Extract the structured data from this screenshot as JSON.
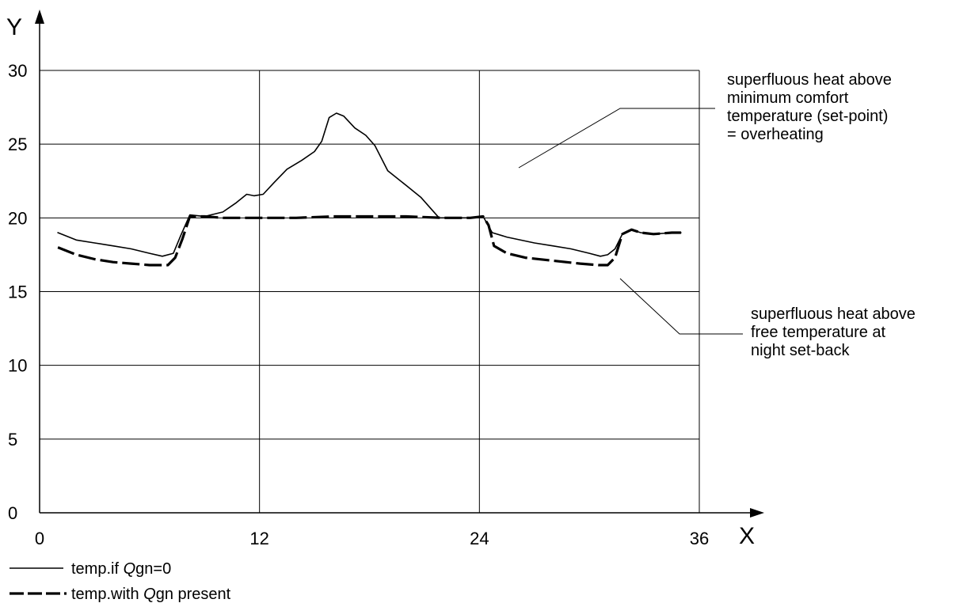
{
  "chart_data": {
    "type": "line",
    "xlabel": "X",
    "ylabel": "Y",
    "xlim": [
      0,
      36
    ],
    "ylim": [
      0,
      30
    ],
    "x_ticks": [
      "0",
      "12",
      "24",
      "36"
    ],
    "y_ticks": [
      "0",
      "5",
      "10",
      "15",
      "20",
      "25",
      "30"
    ],
    "grid": true,
    "series": [
      {
        "name": "temp.if Qgn=0",
        "style": "solid",
        "x": [
          1,
          2,
          3,
          4,
          5,
          6,
          6.7,
          7.3,
          7.7,
          8.2,
          9,
          10,
          10.7,
          11.3,
          11.7,
          12.2,
          12.8,
          13.5,
          14.3,
          15,
          15.4,
          15.8,
          16.2,
          16.6,
          17.2,
          17.8,
          18.3,
          19,
          20,
          20.8,
          21.3,
          21.8,
          22.5,
          23.5,
          24.2,
          24.7,
          25.5,
          27,
          28,
          29,
          30,
          30.6,
          31,
          31.4,
          31.8,
          32.3,
          32.8,
          33.5,
          34.5,
          35
        ],
        "values": [
          19.0,
          18.5,
          18.3,
          18.1,
          17.9,
          17.6,
          17.4,
          17.6,
          18.8,
          20.2,
          20.1,
          20.4,
          21.0,
          21.6,
          21.5,
          21.6,
          22.4,
          23.3,
          23.9,
          24.5,
          25.2,
          26.8,
          27.1,
          26.9,
          26.1,
          25.6,
          24.9,
          23.2,
          22.2,
          21.4,
          20.7,
          20.0,
          20.0,
          20.0,
          20.1,
          19.0,
          18.7,
          18.3,
          18.1,
          17.9,
          17.6,
          17.4,
          17.5,
          17.9,
          18.9,
          19.2,
          19.0,
          18.9,
          19.0,
          19.0
        ]
      },
      {
        "name": "temp.with Qgn present",
        "style": "dashed",
        "x": [
          1,
          2,
          3,
          4,
          5,
          6,
          6.5,
          7,
          7.4,
          7.8,
          8.2,
          9,
          10,
          12,
          14,
          16,
          18,
          20,
          22,
          23.5,
          24.2,
          24.5,
          24.8,
          25.5,
          26.5,
          28,
          29.5,
          30.5,
          31,
          31.4,
          31.8,
          32.3,
          32.8,
          33.5,
          34.5,
          35
        ],
        "values": [
          18.0,
          17.5,
          17.2,
          17.0,
          16.9,
          16.8,
          16.8,
          16.8,
          17.3,
          18.6,
          20.1,
          20.1,
          20.0,
          20.0,
          20.0,
          20.1,
          20.1,
          20.1,
          20.0,
          20.0,
          20.1,
          19.5,
          18.1,
          17.6,
          17.3,
          17.1,
          16.9,
          16.8,
          16.8,
          17.3,
          18.9,
          19.2,
          19.0,
          18.9,
          19.0,
          19.0
        ]
      }
    ],
    "annotations": [
      {
        "lines": [
          "superfluous heat above",
          "minimum comfort",
          "temperature (set-point)",
          "= overheating"
        ]
      },
      {
        "lines": [
          "superfluous heat above",
          "free temperature at",
          "night set-back"
        ]
      }
    ]
  },
  "legend": {
    "solid": {
      "before": "temp.if ",
      "italic": "Q",
      "after": "gn=0"
    },
    "dashed": {
      "before": "temp.with ",
      "italic": "Q",
      "after": "gn present"
    }
  }
}
